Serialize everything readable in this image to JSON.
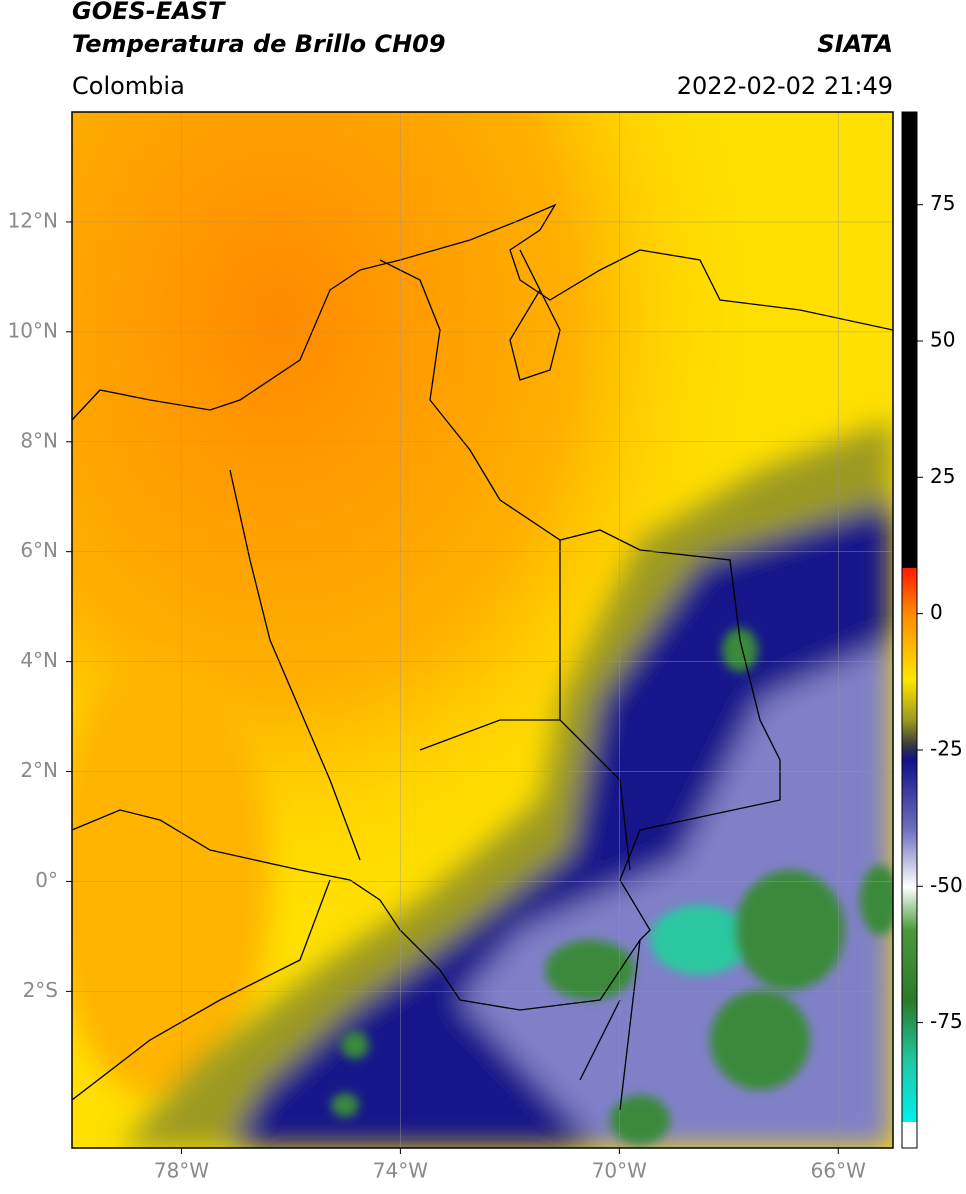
{
  "header": {
    "title": "GOES-EAST",
    "subtitle": "Temperatura de Brillo CH09",
    "region": "Colombia",
    "source": "SIATA",
    "datetime": "2022-02-02 21:49"
  },
  "map": {
    "xlim": [
      -80,
      -65
    ],
    "ylim": [
      -4.85,
      14
    ],
    "xticks": [
      {
        "value": -78,
        "label": "78°W"
      },
      {
        "value": -74,
        "label": "74°W"
      },
      {
        "value": -70,
        "label": "70°W"
      },
      {
        "value": -66,
        "label": "66°W"
      }
    ],
    "yticks": [
      {
        "value": -2,
        "label": "2°S"
      },
      {
        "value": 0,
        "label": "0°"
      },
      {
        "value": 2,
        "label": "2°N"
      },
      {
        "value": 4,
        "label": "4°N"
      },
      {
        "value": 6,
        "label": "6°N"
      },
      {
        "value": 8,
        "label": "8°N"
      },
      {
        "value": 10,
        "label": "10°N"
      },
      {
        "value": 12,
        "label": "12°N"
      }
    ],
    "grid": true
  },
  "colorbar": {
    "lim": [
      -98,
      92
    ],
    "ticks": [
      -75,
      -50,
      -25,
      0,
      25,
      50,
      75
    ]
  }
}
